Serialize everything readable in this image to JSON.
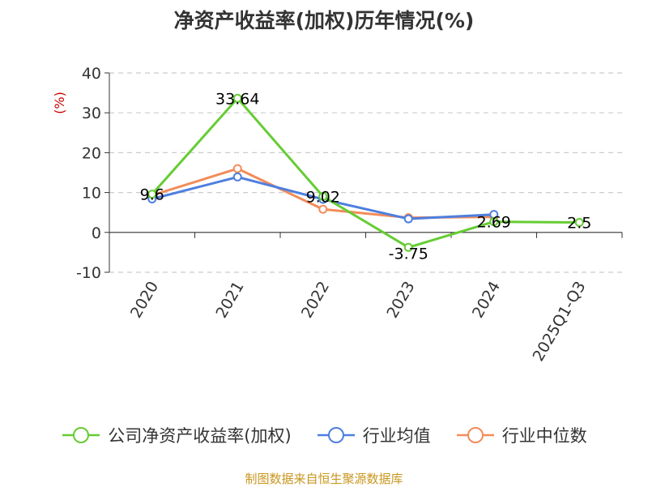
{
  "chart_data": {
    "type": "line",
    "title": "净资产收益率(加权)历年情况(%)",
    "ylabel": "(%)",
    "categories": [
      "2020",
      "2021",
      "2022",
      "2023",
      "2024",
      "2025Q1-Q3"
    ],
    "ylim": [
      -10,
      40
    ],
    "yticks": [
      -10,
      0,
      10,
      20,
      30,
      40
    ],
    "grid": true,
    "legend_position": "bottom",
    "series": [
      {
        "name": "公司净资产收益率(加权)",
        "color": "#66cc33",
        "values": [
          9.6,
          33.64,
          9.02,
          -3.75,
          2.69,
          2.5
        ],
        "labels": [
          "9.6",
          "33.64",
          "9.02",
          "-3.75",
          "2.69",
          "2.5"
        ]
      },
      {
        "name": "行业均值",
        "color": "#4e7fdf",
        "values": [
          8.4,
          13.9,
          8.3,
          3.4,
          4.5,
          null
        ]
      },
      {
        "name": "行业中位数",
        "color": "#f28c5a",
        "values": [
          9.3,
          16.0,
          5.8,
          3.7,
          3.9,
          null
        ]
      }
    ]
  },
  "source": "制图数据来自恒生聚源数据库"
}
